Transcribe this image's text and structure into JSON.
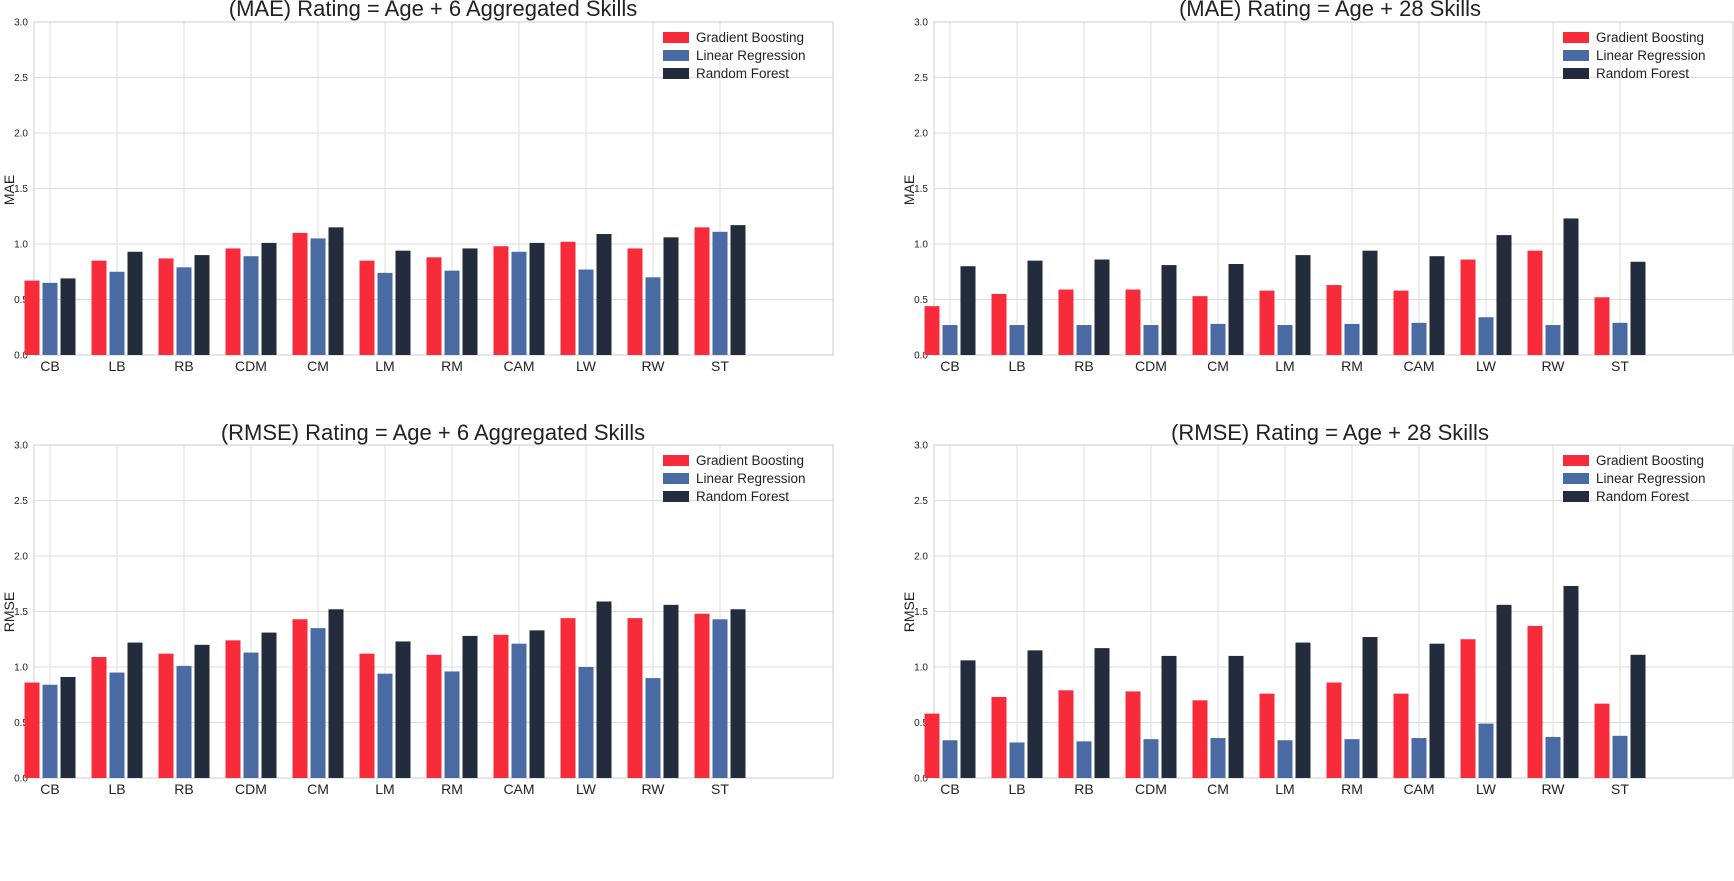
{
  "colors": {
    "gradient_boosting": "#f82b3a",
    "linear_regression": "#4a6aa4",
    "random_forest": "#222c3c",
    "grid": "#dddddd",
    "axes_frame": "#cccccc",
    "text": "#222222"
  },
  "chart_data": [
    {
      "type": "bar",
      "title": "(MAE) Rating = Age + 6 Aggregated Skills",
      "xlabel": "",
      "ylabel": "MAE",
      "ylim": [
        0,
        3.0
      ],
      "yticks": [
        "0.0",
        "0.5",
        "1.0",
        "1.5",
        "2.0",
        "2.5",
        "3.0"
      ],
      "grid": true,
      "legend_position": "top-right",
      "categories": [
        "CB",
        "LB",
        "RB",
        "CDM",
        "CM",
        "LM",
        "RM",
        "CAM",
        "LW",
        "RW",
        "ST"
      ],
      "series": [
        {
          "name": "Gradient Boosting",
          "color_key": "gradient_boosting",
          "values": [
            0.67,
            0.85,
            0.87,
            0.96,
            1.1,
            0.85,
            0.88,
            0.98,
            1.02,
            0.96,
            1.15
          ]
        },
        {
          "name": "Linear Regression",
          "color_key": "linear_regression",
          "values": [
            0.65,
            0.75,
            0.79,
            0.89,
            1.05,
            0.74,
            0.76,
            0.93,
            0.77,
            0.7,
            1.11
          ]
        },
        {
          "name": "Random Forest",
          "color_key": "random_forest",
          "values": [
            0.69,
            0.93,
            0.9,
            1.01,
            1.15,
            0.94,
            0.96,
            1.01,
            1.09,
            1.06,
            1.17
          ]
        }
      ]
    },
    {
      "type": "bar",
      "title": "(MAE) Rating = Age + 28 Skills",
      "xlabel": "",
      "ylabel": "MAE",
      "ylim": [
        0,
        3.0
      ],
      "yticks": [
        "0.0",
        "0.5",
        "1.0",
        "1.5",
        "2.0",
        "2.5",
        "3.0"
      ],
      "grid": true,
      "legend_position": "top-right",
      "categories": [
        "CB",
        "LB",
        "RB",
        "CDM",
        "CM",
        "LM",
        "RM",
        "CAM",
        "LW",
        "RW",
        "ST"
      ],
      "series": [
        {
          "name": "Gradient Boosting",
          "color_key": "gradient_boosting",
          "values": [
            0.44,
            0.55,
            0.59,
            0.59,
            0.53,
            0.58,
            0.63,
            0.58,
            0.86,
            0.94,
            0.52
          ]
        },
        {
          "name": "Linear Regression",
          "color_key": "linear_regression",
          "values": [
            0.27,
            0.27,
            0.27,
            0.27,
            0.28,
            0.27,
            0.28,
            0.29,
            0.34,
            0.27,
            0.29
          ]
        },
        {
          "name": "Random Forest",
          "color_key": "random_forest",
          "values": [
            0.8,
            0.85,
            0.86,
            0.81,
            0.82,
            0.9,
            0.94,
            0.89,
            1.08,
            1.23,
            0.84
          ]
        }
      ]
    },
    {
      "type": "bar",
      "title": "(RMSE) Rating = Age + 6 Aggregated Skills",
      "xlabel": "",
      "ylabel": "RMSE",
      "ylim": [
        0,
        3.0
      ],
      "yticks": [
        "0.0",
        "0.5",
        "1.0",
        "1.5",
        "2.0",
        "2.5",
        "3.0"
      ],
      "grid": true,
      "legend_position": "top-right",
      "categories": [
        "CB",
        "LB",
        "RB",
        "CDM",
        "CM",
        "LM",
        "RM",
        "CAM",
        "LW",
        "RW",
        "ST"
      ],
      "series": [
        {
          "name": "Gradient Boosting",
          "color_key": "gradient_boosting",
          "values": [
            0.86,
            1.09,
            1.12,
            1.24,
            1.43,
            1.12,
            1.11,
            1.29,
            1.44,
            1.44,
            1.48
          ]
        },
        {
          "name": "Linear Regression",
          "color_key": "linear_regression",
          "values": [
            0.84,
            0.95,
            1.01,
            1.13,
            1.35,
            0.94,
            0.96,
            1.21,
            1.0,
            0.9,
            1.43
          ]
        },
        {
          "name": "Random Forest",
          "color_key": "random_forest",
          "values": [
            0.91,
            1.22,
            1.2,
            1.31,
            1.52,
            1.23,
            1.28,
            1.33,
            1.59,
            1.56,
            1.52
          ]
        }
      ]
    },
    {
      "type": "bar",
      "title": "(RMSE) Rating = Age + 28 Skills",
      "xlabel": "",
      "ylabel": "RMSE",
      "ylim": [
        0,
        3.0
      ],
      "yticks": [
        "0.0",
        "0.5",
        "1.0",
        "1.5",
        "2.0",
        "2.5",
        "3.0"
      ],
      "grid": true,
      "legend_position": "top-right",
      "categories": [
        "CB",
        "LB",
        "RB",
        "CDM",
        "CM",
        "LM",
        "RM",
        "CAM",
        "LW",
        "RW",
        "ST"
      ],
      "series": [
        {
          "name": "Gradient Boosting",
          "color_key": "gradient_boosting",
          "values": [
            0.58,
            0.73,
            0.79,
            0.78,
            0.7,
            0.76,
            0.86,
            0.76,
            1.25,
            1.37,
            0.67
          ]
        },
        {
          "name": "Linear Regression",
          "color_key": "linear_regression",
          "values": [
            0.34,
            0.32,
            0.33,
            0.35,
            0.36,
            0.34,
            0.35,
            0.36,
            0.49,
            0.37,
            0.38
          ]
        },
        {
          "name": "Random Forest",
          "color_key": "random_forest",
          "values": [
            1.06,
            1.15,
            1.17,
            1.1,
            1.1,
            1.22,
            1.27,
            1.21,
            1.56,
            1.73,
            1.11
          ]
        }
      ]
    }
  ]
}
